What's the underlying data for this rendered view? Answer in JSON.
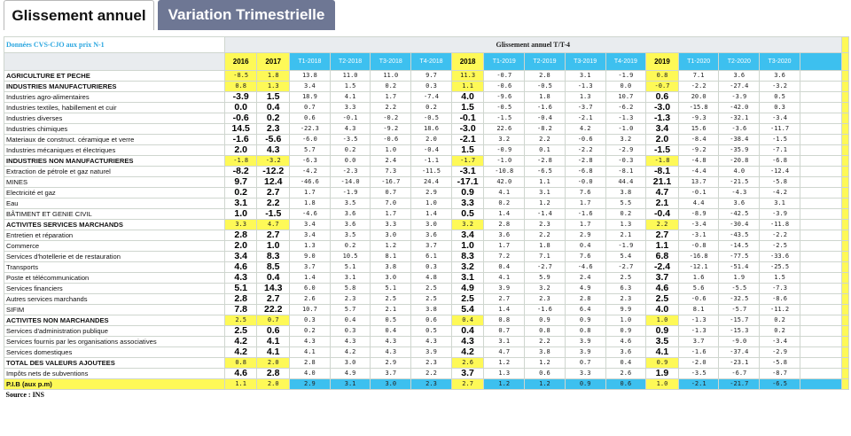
{
  "tabs": [
    "Glissement annuel",
    "Variation Trimestrielle"
  ],
  "header": {
    "note": "Données CVS-CJO aux prix N-1",
    "title": "Glissement annuel T/T-4"
  },
  "columns": [
    "2016",
    "2017",
    "T1-2018",
    "T2-2018",
    "T3-2018",
    "T4-2018",
    "2018",
    "T1-2019",
    "T2-2019",
    "T3-2019",
    "T4-2019",
    "2019",
    "T1-2020",
    "T2-2020",
    "T3-2020"
  ],
  "rows": [
    {
      "label": "AGRICULTURE ET PECHE",
      "section": true,
      "values": [
        "-8.5",
        "1.8",
        "13.8",
        "11.0",
        "11.0",
        "9.7",
        "11.3",
        "-0.7",
        "2.8",
        "3.1",
        "-1.9",
        "0.8",
        "7.1",
        "3.6",
        "3.6"
      ]
    },
    {
      "label": "INDUSTRIES MANUFACTURIERES",
      "section": true,
      "values": [
        "0.8",
        "1.3",
        "3.4",
        "1.5",
        "0.2",
        "0.3",
        "1.1",
        "-0.6",
        "-0.5",
        "-1.3",
        "0.0",
        "-0.7",
        "-2.2",
        "-27.4",
        "-3.2"
      ]
    },
    {
      "label": "Industries agro-alimentaires",
      "values": [
        "-3.9",
        "1.5",
        "18.9",
        "4.1",
        "1.7",
        "-7.4",
        "4.0",
        "-9.6",
        "1.8",
        "1.3",
        "10.7",
        "0.6",
        "20.0",
        "-3.9",
        "0.5"
      ]
    },
    {
      "label": "Industries textiles, habillement et cuir",
      "values": [
        "0.0",
        "0.4",
        "0.7",
        "3.3",
        "2.2",
        "0.2",
        "1.5",
        "-0.5",
        "-1.6",
        "-3.7",
        "-6.2",
        "-3.0",
        "-15.8",
        "-42.0",
        "0.3"
      ]
    },
    {
      "label": "Industries diverses",
      "values": [
        "-0.6",
        "0.2",
        "0.6",
        "-0.1",
        "-0.2",
        "-0.5",
        "-0.1",
        "-1.5",
        "-0.4",
        "-2.1",
        "-1.3",
        "-1.3",
        "-9.3",
        "-32.1",
        "-3.4"
      ]
    },
    {
      "label": "Industries chimiques",
      "values": [
        "14.5",
        "2.3",
        "-22.3",
        "4.3",
        "-9.2",
        "18.6",
        "-3.0",
        "22.6",
        "-8.2",
        "4.2",
        "-1.0",
        "3.4",
        "15.6",
        "-3.6",
        "-11.7"
      ]
    },
    {
      "label": "Materiaux de construct. céramique et verre",
      "values": [
        "-1.6",
        "-5.6",
        "-6.0",
        "-3.5",
        "-0.6",
        "2.0",
        "-2.1",
        "3.2",
        "2.2",
        "-0.6",
        "3.2",
        "2.0",
        "-8.4",
        "-38.4",
        "-1.5"
      ]
    },
    {
      "label": "Industries mécaniques et électriques",
      "values": [
        "2.0",
        "4.3",
        "5.7",
        "0.2",
        "1.0",
        "-0.4",
        "1.5",
        "-0.9",
        "0.1",
        "-2.2",
        "-2.9",
        "-1.5",
        "-9.2",
        "-35.9",
        "-7.1"
      ]
    },
    {
      "label": "INDUSTRIES  NON MANUFACTURIERES",
      "section": true,
      "values": [
        "-1.8",
        "-3.2",
        "-6.3",
        "0.0",
        "2.4",
        "-1.1",
        "-1.7",
        "-1.0",
        "-2.8",
        "-2.8",
        "-0.3",
        "-1.8",
        "-4.8",
        "-20.8",
        "-6.8"
      ]
    },
    {
      "label": "Extraction de pétrole et gaz naturel",
      "values": [
        "-8.2",
        "-12.2",
        "-4.2",
        "-2.3",
        "7.3",
        "-11.5",
        "-3.1",
        "-10.8",
        "-6.5",
        "-6.8",
        "-8.1",
        "-8.1",
        "-4.4",
        "4.0",
        "-12.4"
      ]
    },
    {
      "label": "MINES",
      "values": [
        "9.7",
        "12.4",
        "-46.6",
        "-14.0",
        "-16.7",
        "24.4",
        "-17.1",
        "42.0",
        "1.1",
        "-0.0",
        "44.4",
        "21.1",
        "13.7",
        "-21.5",
        "-5.8"
      ]
    },
    {
      "label": "Electricité et gaz",
      "values": [
        "0.2",
        "2.7",
        "1.7",
        "-1.9",
        "0.7",
        "2.9",
        "0.9",
        "4.1",
        "3.1",
        "7.6",
        "3.8",
        "4.7",
        "-0.1",
        "-4.3",
        "-4.2"
      ]
    },
    {
      "label": "Eau",
      "values": [
        "3.1",
        "2.2",
        "1.8",
        "3.5",
        "7.0",
        "1.0",
        "3.3",
        "0.2",
        "1.2",
        "1.7",
        "5.5",
        "2.1",
        "4.4",
        "3.6",
        "3.1"
      ]
    },
    {
      "label": "BÂTIMENT ET GENIE CIVIL",
      "values": [
        "1.0",
        "-1.5",
        "-4.6",
        "3.6",
        "1.7",
        "1.4",
        "0.5",
        "1.4",
        "-1.4",
        "-1.6",
        "0.2",
        "-0.4",
        "-8.9",
        "-42.5",
        "-3.9"
      ]
    },
    {
      "label": "ACTIVITES SERVICES MARCHANDS",
      "section": true,
      "values": [
        "3.3",
        "4.7",
        "3.4",
        "3.6",
        "3.3",
        "3.0",
        "3.2",
        "2.8",
        "2.3",
        "1.7",
        "1.3",
        "2.2",
        "-3.4",
        "-30.4",
        "-11.8"
      ]
    },
    {
      "label": "Entretien et réparation",
      "values": [
        "2.8",
        "2.7",
        "3.4",
        "3.5",
        "3.0",
        "3.6",
        "3.4",
        "3.6",
        "2.2",
        "2.9",
        "2.1",
        "2.7",
        "-3.1",
        "-43.5",
        "-2.2"
      ]
    },
    {
      "label": "Commerce",
      "values": [
        "2.0",
        "1.0",
        "1.3",
        "0.2",
        "1.2",
        "3.7",
        "1.0",
        "1.7",
        "1.8",
        "0.4",
        "-1.9",
        "1.1",
        "-0.8",
        "-14.5",
        "-2.5"
      ]
    },
    {
      "label": "Services d'hotellerie et de restauration",
      "values": [
        "3.4",
        "8.3",
        "9.0",
        "10.5",
        "8.1",
        "6.1",
        "8.3",
        "7.2",
        "7.1",
        "7.6",
        "5.4",
        "6.8",
        "-16.8",
        "-77.5",
        "-33.6"
      ]
    },
    {
      "label": "Transports",
      "values": [
        "4.6",
        "8.5",
        "3.7",
        "5.1",
        "3.8",
        "0.3",
        "3.2",
        "0.4",
        "-2.7",
        "-4.6",
        "-2.7",
        "-2.4",
        "-12.1",
        "-51.4",
        "-25.5"
      ]
    },
    {
      "label": "Poste et télécommunication",
      "values": [
        "4.3",
        "0.4",
        "1.4",
        "3.1",
        "3.0",
        "4.8",
        "3.1",
        "4.1",
        "5.9",
        "2.4",
        "2.5",
        "3.7",
        "1.6",
        "1.9",
        "1.5"
      ]
    },
    {
      "label": "Services financiers",
      "values": [
        "5.1",
        "14.3",
        "6.0",
        "5.8",
        "5.1",
        "2.5",
        "4.9",
        "3.9",
        "3.2",
        "4.9",
        "6.3",
        "4.6",
        "5.6",
        "-5.5",
        "-7.3"
      ]
    },
    {
      "label": "Autres services marchands",
      "values": [
        "2.8",
        "2.7",
        "2.6",
        "2.3",
        "2.5",
        "2.5",
        "2.5",
        "2.7",
        "2.3",
        "2.8",
        "2.3",
        "2.5",
        "-0.6",
        "-32.5",
        "-8.6"
      ]
    },
    {
      "label": "SIFIM",
      "values": [
        "7.8",
        "22.2",
        "10.7",
        "5.7",
        "2.1",
        "3.8",
        "5.4",
        "1.4",
        "-1.6",
        "6.4",
        "9.9",
        "4.0",
        "8.1",
        "-5.7",
        "-11.2"
      ]
    },
    {
      "label": "ACTIVITES NON MARCHANDES",
      "section": true,
      "values": [
        "2.5",
        "0.7",
        "0.3",
        "0.4",
        "0.5",
        "0.6",
        "0.4",
        "0.8",
        "0.9",
        "0.9",
        "1.0",
        "1.0",
        "-1.3",
        "-15.7",
        "0.2"
      ]
    },
    {
      "label": "Services d'administration publique",
      "values": [
        "2.5",
        "0.6",
        "0.2",
        "0.3",
        "0.4",
        "0.5",
        "0.4",
        "0.7",
        "0.8",
        "0.8",
        "0.9",
        "0.9",
        "-1.3",
        "-15.3",
        "0.2"
      ]
    },
    {
      "label": "Services fournis par les organisations associatives",
      "values": [
        "4.2",
        "4.1",
        "4.3",
        "4.3",
        "4.3",
        "4.3",
        "4.3",
        "3.1",
        "2.2",
        "3.9",
        "4.6",
        "3.5",
        "3.7",
        "-9.0",
        "-3.4"
      ]
    },
    {
      "label": "Services domestiques",
      "values": [
        "4.2",
        "4.1",
        "4.1",
        "4.2",
        "4.3",
        "3.9",
        "4.2",
        "4.7",
        "3.8",
        "3.9",
        "3.6",
        "4.1",
        "-1.6",
        "-37.4",
        "-2.9"
      ]
    },
    {
      "label": "TOTAL DES VALEURS AJOUTEES",
      "section": true,
      "values": [
        "0.8",
        "2.0",
        "2.8",
        "3.0",
        "2.9",
        "2.3",
        "2.6",
        "1.2",
        "1.2",
        "0.7",
        "0.4",
        "0.9",
        "-2.0",
        "-23.1",
        "-5.8"
      ]
    },
    {
      "label": "Impôts nets de subventions",
      "values": [
        "4.6",
        "2.8",
        "4.0",
        "4.9",
        "3.7",
        "2.2",
        "3.7",
        "1.3",
        "0.6",
        "3.3",
        "2.6",
        "1.9",
        "-3.5",
        "-6.7",
        "-8.7"
      ]
    },
    {
      "label": "P.I.B (aux p.m)",
      "section": true,
      "pib": true,
      "values": [
        "1.1",
        "2.0",
        "2.9",
        "3.1",
        "3.0",
        "2.3",
        "2.7",
        "1.2",
        "1.2",
        "0.9",
        "0.6",
        "1.0",
        "-2.1",
        "-21.7",
        "-6.5"
      ]
    }
  ],
  "source": "Source : INS",
  "colors": {
    "yellow": "#fef957",
    "cyan": "#3dc0ef",
    "tab_active": "#6e7794",
    "section_line": "#3a8a3a"
  }
}
